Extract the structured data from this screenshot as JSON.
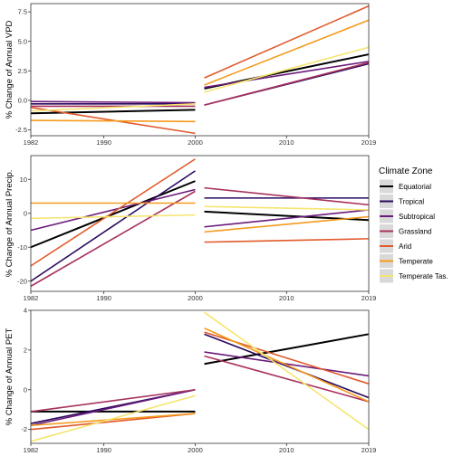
{
  "legend": {
    "title": "Climate Zone",
    "placement": "right",
    "entries": [
      {
        "name": "Equatorial",
        "color": "#000000"
      },
      {
        "name": "Tropical",
        "color": "#2a0a5e"
      },
      {
        "name": "Subtropical",
        "color": "#6a1a7a"
      },
      {
        "name": "Grassland",
        "color": "#a8325e"
      },
      {
        "name": "Arid",
        "color": "#e05a2b"
      },
      {
        "name": "Temperate",
        "color": "#f59a1a"
      },
      {
        "name": "Temperate Tas.",
        "color": "#f5e56e"
      }
    ]
  },
  "chart_data": [
    {
      "type": "line",
      "ylabel": "% Change of Annual VPD",
      "ylim": [
        -3.0,
        8.2
      ],
      "yticks": [
        -2.5,
        0.0,
        2.5,
        5.0,
        7.5
      ],
      "ytick_labels": [
        "-2.5",
        "0.0",
        "2.5",
        "5.0",
        "7.5"
      ],
      "xlim": [
        1982,
        2019
      ],
      "xticks": [
        1982,
        1990,
        2000,
        2010,
        2019
      ],
      "xtick_labels": [
        "1982",
        "1990",
        "2000",
        "2010",
        "2019"
      ],
      "period1": [
        1982,
        2000
      ],
      "period2": [
        2001,
        2019
      ],
      "series": [
        {
          "name": "Equatorial",
          "p1": [
            -1.1,
            -0.8
          ],
          "p2": [
            1.0,
            3.9
          ]
        },
        {
          "name": "Tropical",
          "p1": [
            -0.3,
            -0.3
          ],
          "p2": [
            -0.4,
            3.1
          ]
        },
        {
          "name": "Subtropical",
          "p1": [
            -0.1,
            -0.2
          ],
          "p2": [
            1.1,
            3.3
          ]
        },
        {
          "name": "Grassland",
          "p1": [
            -0.5,
            -0.5
          ],
          "p2": [
            -0.4,
            3.2
          ]
        },
        {
          "name": "Arid",
          "p1": [
            -0.6,
            -2.8
          ],
          "p2": [
            1.9,
            8.0
          ]
        },
        {
          "name": "Temperate",
          "p1": [
            -1.7,
            -1.8
          ],
          "p2": [
            1.3,
            6.8
          ]
        },
        {
          "name": "Temperate Tas.",
          "p1": [
            -0.9,
            -0.3
          ],
          "p2": [
            0.7,
            4.5
          ]
        }
      ]
    },
    {
      "type": "line",
      "ylabel": "% Change of Annual Precip.",
      "ylim": [
        -23,
        17
      ],
      "yticks": [
        -20,
        -10,
        0,
        10
      ],
      "ytick_labels": [
        "-20",
        "-10",
        "0",
        "10"
      ],
      "xlim": [
        1982,
        2019
      ],
      "xticks": [
        1982,
        1990,
        2000,
        2010,
        2019
      ],
      "xtick_labels": [
        "1982",
        "1990",
        "2000",
        "2010",
        "2019"
      ],
      "period1": [
        1982,
        2000
      ],
      "period2": [
        2001,
        2019
      ],
      "series": [
        {
          "name": "Equatorial",
          "p1": [
            -10.0,
            9.5
          ],
          "p2": [
            0.5,
            -2.0
          ]
        },
        {
          "name": "Tropical",
          "p1": [
            -20.0,
            12.5
          ],
          "p2": [
            4.5,
            4.5
          ]
        },
        {
          "name": "Subtropical",
          "p1": [
            -5.0,
            7.0
          ],
          "p2": [
            -4.0,
            1.0
          ]
        },
        {
          "name": "Grassland",
          "p1": [
            -21.5,
            6.5
          ],
          "p2": [
            7.5,
            2.5
          ]
        },
        {
          "name": "Arid",
          "p1": [
            -15.5,
            16.0
          ],
          "p2": [
            -8.5,
            -7.5
          ]
        },
        {
          "name": "Temperate",
          "p1": [
            3.0,
            3.0
          ],
          "p2": [
            -5.5,
            -1.0
          ]
        },
        {
          "name": "Temperate Tas.",
          "p1": [
            -1.5,
            -0.5
          ],
          "p2": [
            2.0,
            1.0
          ]
        }
      ]
    },
    {
      "type": "line",
      "ylabel": "% Change of Annual PET",
      "ylim": [
        -2.7,
        4.0
      ],
      "yticks": [
        -2,
        0,
        2,
        4
      ],
      "ytick_labels": [
        "-2",
        "0",
        "2",
        "4"
      ],
      "xlim": [
        1982,
        2019
      ],
      "xticks": [
        1982,
        1990,
        2000,
        2010,
        2019
      ],
      "xtick_labels": [
        "1982",
        "1990",
        "2000",
        "2010",
        "2019"
      ],
      "period1": [
        1982,
        2000
      ],
      "period2": [
        2001,
        2019
      ],
      "series": [
        {
          "name": "Equatorial",
          "p1": [
            -1.1,
            -1.1
          ],
          "p2": [
            1.3,
            2.8
          ]
        },
        {
          "name": "Tropical",
          "p1": [
            -1.7,
            0.0
          ],
          "p2": [
            2.8,
            -0.4
          ]
        },
        {
          "name": "Subtropical",
          "p1": [
            -1.8,
            0.0
          ],
          "p2": [
            1.9,
            0.7
          ]
        },
        {
          "name": "Grassland",
          "p1": [
            -1.1,
            0.0
          ],
          "p2": [
            1.7,
            -0.6
          ]
        },
        {
          "name": "Arid",
          "p1": [
            -2.0,
            -1.2
          ],
          "p2": [
            2.9,
            0.3
          ]
        },
        {
          "name": "Temperate",
          "p1": [
            -1.8,
            -1.2
          ],
          "p2": [
            3.1,
            -0.6
          ]
        },
        {
          "name": "Temperate Tas.",
          "p1": [
            -2.6,
            -0.3
          ],
          "p2": [
            3.9,
            -2.0
          ]
        }
      ]
    }
  ]
}
